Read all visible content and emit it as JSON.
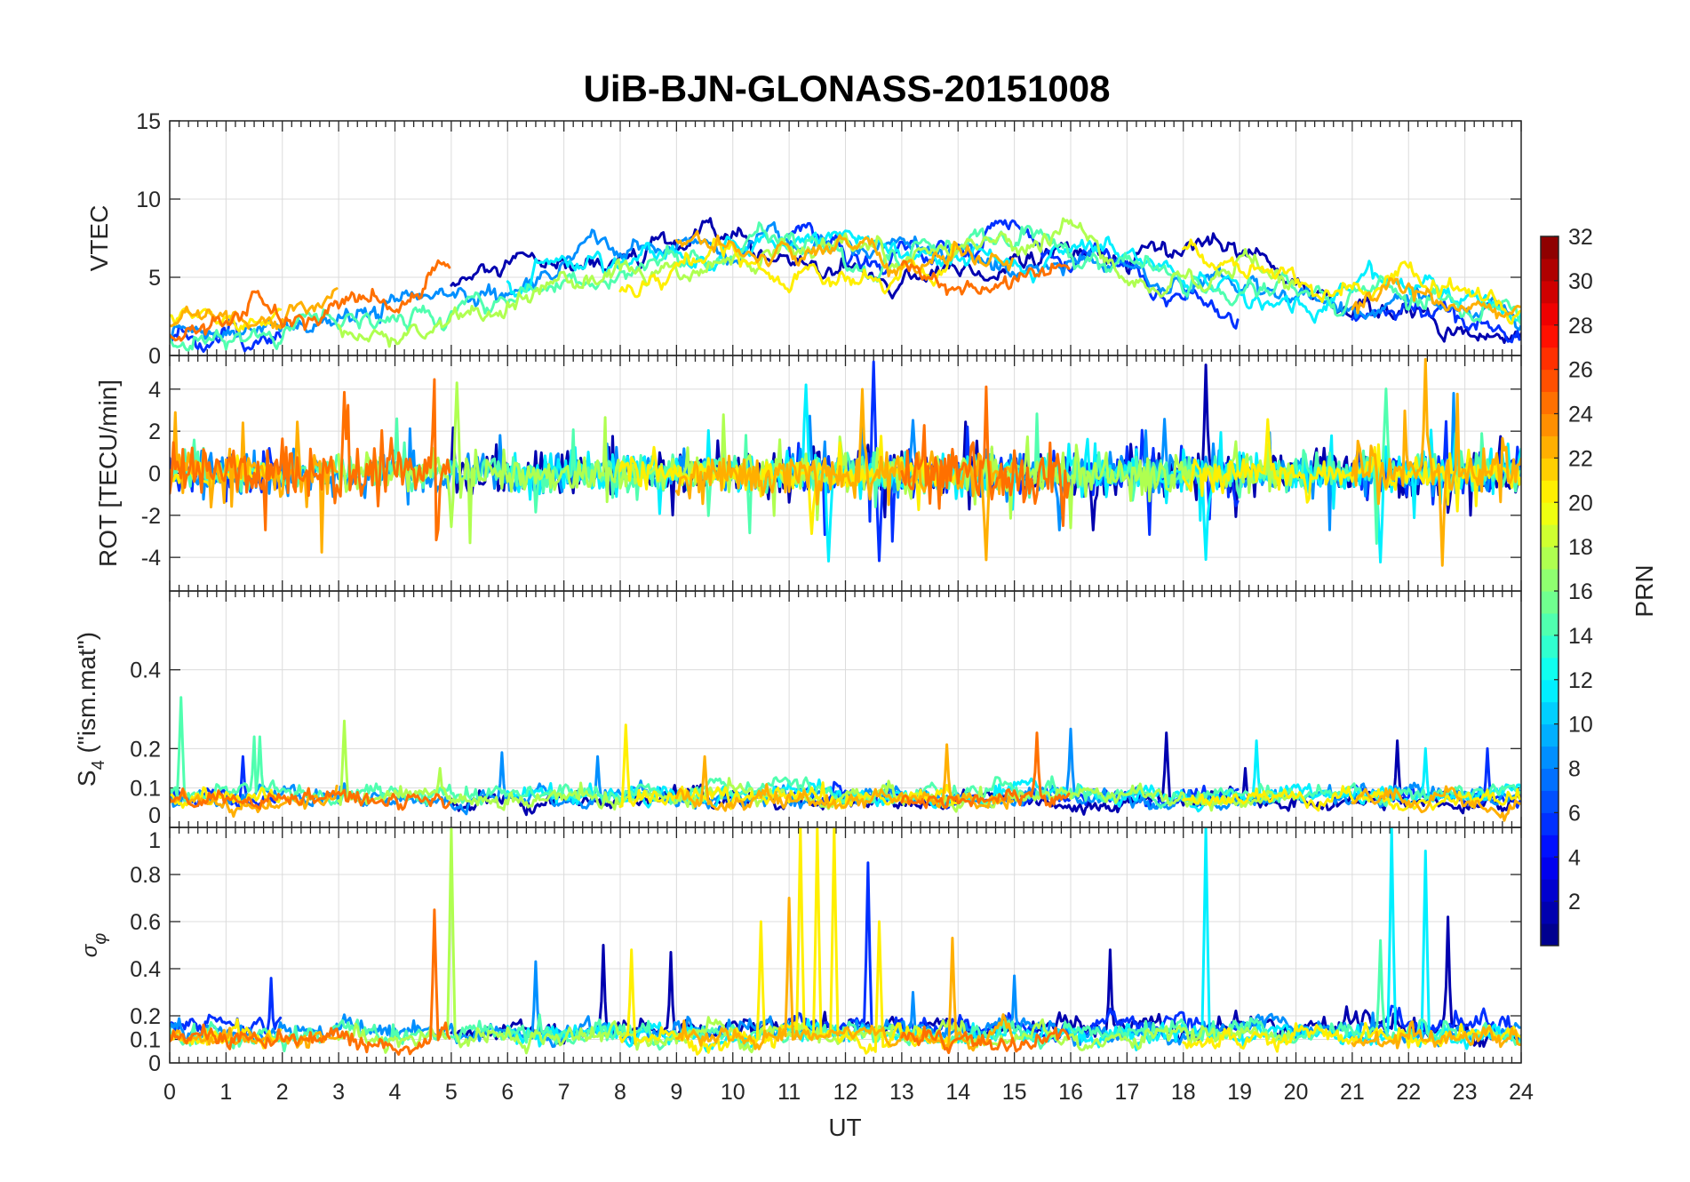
{
  "chart_data": {
    "type": "line",
    "title": "UiB-BJN-GLONASS-20151008",
    "xlabel": "UT",
    "xlim": [
      0,
      24
    ],
    "xticks": [
      0,
      1,
      2,
      3,
      4,
      5,
      6,
      7,
      8,
      9,
      10,
      11,
      12,
      13,
      14,
      15,
      16,
      17,
      18,
      19,
      20,
      21,
      22,
      23,
      24
    ],
    "grid": true,
    "panels": [
      {
        "key": "vtec",
        "ylabel_main": "VTEC",
        "ylabel_sub": "",
        "ylabel_rest": "",
        "ylim": [
          0,
          15
        ],
        "yticks": [
          0,
          5,
          10,
          15
        ]
      },
      {
        "key": "rot",
        "ylabel_main": "ROT [TECU/min]",
        "ylabel_sub": "",
        "ylabel_rest": "",
        "ylim": [
          -5.6,
          5.6
        ],
        "yticks": [
          -4,
          -2,
          0,
          2,
          4
        ]
      },
      {
        "key": "s4",
        "ylabel_main": "S",
        "ylabel_sub": "4",
        "ylabel_rest": " (\"ism.mat\")",
        "ylim": [
          0,
          0.6
        ],
        "yticks": [
          0,
          0.1,
          0.2,
          0.4
        ]
      },
      {
        "key": "sigma",
        "ylabel_main": "σ",
        "ylabel_sub": "φ",
        "ylabel_rest": "",
        "ylim": [
          0,
          1
        ],
        "yticks": [
          0,
          0.1,
          0.2,
          0.4,
          0.6,
          0.8,
          1
        ]
      }
    ],
    "colorbar": {
      "label": "PRN",
      "colormap": "jet",
      "range": [
        0,
        32
      ],
      "levels": 32,
      "ticks": [
        2,
        4,
        6,
        8,
        10,
        12,
        14,
        16,
        18,
        20,
        22,
        24,
        26,
        28,
        30,
        32
      ]
    },
    "series_note_hours": "vtec values hourly from 0 to 24 UT; null = satellite not tracked",
    "series": [
      {
        "prn": 1,
        "vtec": [
          null,
          null,
          null,
          null,
          null,
          4.5,
          5,
          5.5,
          6,
          6.5,
          7,
          6,
          5.5,
          5,
          5.5,
          6,
          6,
          6.5,
          6.5,
          6.5,
          5,
          3,
          2,
          1.5,
          1.5
        ],
        "rot_amp": 0.5,
        "s4_base": 0.06,
        "sigma_base": 0.13,
        "rot_spikes": [
          [
            18.4,
            5.5
          ],
          [
            16.4,
            -3
          ]
        ],
        "s4_spikes": [
          [
            17.7,
            0.24
          ],
          [
            21.8,
            0.22
          ],
          [
            19.1,
            0.15
          ]
        ],
        "sigma_spikes": [
          [
            7.7,
            0.5
          ],
          [
            8.9,
            0.47
          ],
          [
            16.7,
            0.48
          ],
          [
            22.7,
            0.62
          ]
        ]
      },
      {
        "prn": 5,
        "vtec": [
          1.5,
          1,
          1.2,
          null,
          null,
          null,
          null,
          null,
          null,
          null,
          null,
          7.5,
          6,
          7,
          7.5,
          8,
          6,
          5.5,
          3,
          2.5,
          null,
          2.5,
          3,
          2,
          1.5
        ],
        "rot_amp": 0.5,
        "s4_base": 0.07,
        "sigma_base": 0.14,
        "rot_spikes": [
          [
            12.5,
            5.5
          ],
          [
            12.6,
            -5
          ],
          [
            4.8,
            -4
          ]
        ],
        "s4_spikes": [
          [
            23.4,
            0.2
          ],
          [
            1.3,
            0.18
          ]
        ],
        "sigma_spikes": [
          [
            1.8,
            0.36
          ],
          [
            12.4,
            0.85
          ],
          [
            4.7,
            0.62
          ]
        ]
      },
      {
        "prn": 8,
        "vtec": [
          1.2,
          1.5,
          2,
          2.5,
          3,
          3.5,
          4.5,
          6,
          6.5,
          7,
          6.5,
          7,
          6.5,
          7,
          6,
          5.5,
          6.5,
          6,
          5,
          5,
          4,
          3,
          3.5,
          3,
          2.5
        ],
        "rot_amp": 0.45,
        "s4_base": 0.07,
        "sigma_base": 0.12,
        "rot_spikes": [
          [
            13.2,
            3
          ],
          [
            15.8,
            -3
          ]
        ],
        "s4_spikes": [
          [
            16.0,
            0.25
          ],
          [
            5.9,
            0.19
          ],
          [
            7.6,
            0.18
          ]
        ],
        "sigma_spikes": [
          [
            6.5,
            0.43
          ],
          [
            15.0,
            0.37
          ],
          [
            13.2,
            0.3
          ]
        ]
      },
      {
        "prn": 11,
        "vtec": [
          null,
          null,
          null,
          null,
          null,
          null,
          5,
          6,
          6.5,
          6.5,
          6,
          7,
          8,
          6.5,
          6,
          5.5,
          6,
          6,
          5,
          4,
          3,
          4,
          5,
          3,
          2.5
        ],
        "rot_amp": 0.5,
        "s4_base": 0.075,
        "sigma_base": 0.1,
        "rot_spikes": [
          [
            11.3,
            5.5
          ],
          [
            11.7,
            -5.5
          ],
          [
            18.4,
            -5.5
          ],
          [
            21.5,
            5
          ],
          [
            21.5,
            -5.5
          ]
        ],
        "s4_spikes": [
          [
            19.3,
            0.22
          ],
          [
            22.3,
            0.2
          ]
        ],
        "sigma_spikes": [
          [
            18.4,
            1.0
          ],
          [
            21.7,
            1.0
          ],
          [
            22.3,
            0.9
          ]
        ]
      },
      {
        "prn": 14,
        "vtec": [
          1,
          1.5,
          2,
          2.5,
          2.5,
          3,
          4,
          5,
          5.5,
          6,
          6.5,
          7.5,
          7,
          6,
          7.5,
          7.5,
          7,
          6,
          5.5,
          5,
          4,
          3.5,
          4,
          3,
          2
        ],
        "rot_amp": 0.4,
        "s4_base": 0.08,
        "sigma_base": 0.11,
        "rot_spikes": [
          [
            21.6,
            5
          ]
        ],
        "s4_spikes": [
          [
            0.2,
            0.33
          ],
          [
            1.5,
            0.23
          ],
          [
            1.6,
            0.23
          ]
        ],
        "sigma_spikes": [
          [
            21.5,
            0.52
          ]
        ]
      },
      {
        "prn": 17,
        "vtec": [
          null,
          null,
          null,
          2,
          1,
          2.5,
          3,
          4.5,
          5.5,
          6,
          6,
          6,
          6.5,
          6.5,
          6.5,
          7,
          7.5,
          5.5,
          4.5,
          6,
          4.5,
          null,
          null,
          null,
          null
        ],
        "rot_amp": 0.45,
        "s4_base": 0.07,
        "sigma_base": 0.1,
        "rot_spikes": [
          [
            5.1,
            5.5
          ],
          [
            5.0,
            -3
          ]
        ],
        "s4_spikes": [
          [
            3.1,
            0.27
          ],
          [
            4.8,
            0.15
          ]
        ],
        "sigma_spikes": [
          [
            5.0,
            1.0
          ]
        ]
      },
      {
        "prn": 20,
        "vtec": [
          2.5,
          2,
          2.5,
          null,
          null,
          null,
          null,
          null,
          3.5,
          5.5,
          6,
          5,
          4.5,
          5,
          6.5,
          null,
          null,
          null,
          6,
          6.5,
          5,
          3.5,
          4.5,
          3.5,
          3
        ],
        "rot_amp": 0.35,
        "s4_base": 0.065,
        "sigma_base": 0.09,
        "rot_spikes": [
          [
            11.4,
            -4
          ],
          [
            19.5,
            3
          ]
        ],
        "s4_spikes": [
          [
            8.1,
            0.26
          ]
        ],
        "sigma_spikes": [
          [
            10.5,
            0.6
          ],
          [
            11.2,
            1.0
          ],
          [
            11.5,
            1.0
          ],
          [
            11.8,
            1.0
          ],
          [
            12.6,
            0.6
          ],
          [
            8.2,
            0.48
          ]
        ]
      },
      {
        "prn": 22,
        "vtec": [
          2,
          2.5,
          2.5,
          3,
          null,
          null,
          null,
          null,
          null,
          6,
          7,
          6,
          7.5,
          6,
          7,
          6,
          null,
          null,
          null,
          null,
          null,
          3,
          4,
          3,
          2.5
        ],
        "rot_amp": 0.55,
        "s4_base": 0.06,
        "sigma_base": 0.09,
        "rot_spikes": [
          [
            14.5,
            -5.5
          ],
          [
            22.3,
            5.5
          ],
          [
            22.6,
            -5.5
          ],
          [
            12.3,
            4
          ]
        ],
        "s4_spikes": [
          [
            13.8,
            0.21
          ],
          [
            9.5,
            0.18
          ]
        ],
        "sigma_spikes": [
          [
            13.9,
            0.53
          ],
          [
            11.0,
            0.7
          ]
        ]
      },
      {
        "prn": 24,
        "vtec": [
          2,
          2,
          2.5,
          3.5,
          3.5,
          6,
          null,
          null,
          null,
          null,
          null,
          null,
          null,
          6,
          4,
          5,
          5,
          null,
          null,
          null,
          null,
          null,
          null,
          null,
          null
        ],
        "rot_amp": 0.7,
        "s4_base": 0.065,
        "sigma_base": 0.08,
        "rot_spikes": [
          [
            4.7,
            5.5
          ],
          [
            4.75,
            -4.5
          ],
          [
            3.1,
            4
          ],
          [
            16.4,
            5.5
          ],
          [
            16.45,
            -5.5
          ]
        ],
        "s4_spikes": [
          [
            15.4,
            0.24
          ]
        ],
        "sigma_spikes": [
          [
            4.7,
            0.65
          ],
          [
            16.4,
            1.0
          ],
          [
            16.5,
            1.0
          ]
        ]
      }
    ]
  }
}
